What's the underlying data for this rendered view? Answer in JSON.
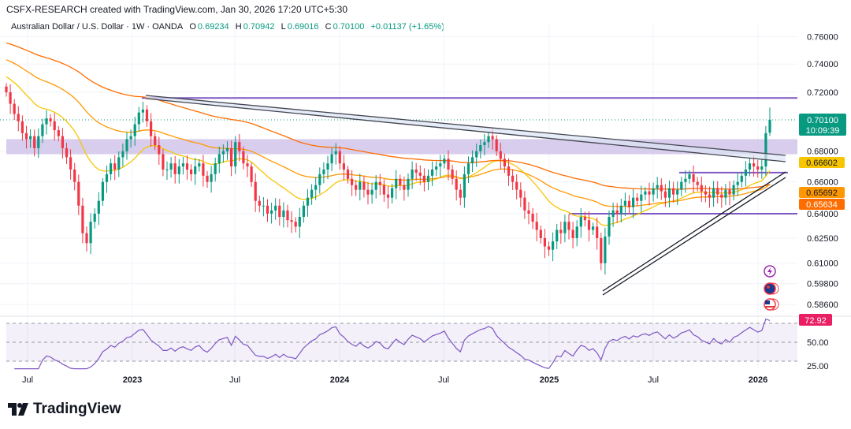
{
  "header": {
    "credit": "CSFX-RESEARCH created with TradingView.com, Jan 30, 2026 17:20 UTC+5:30",
    "symbol": "Australian Dollar / U.S. Dollar · 1W · OANDA",
    "open_label": "O",
    "open": "0.69234",
    "high_label": "H",
    "high": "0.70942",
    "low_label": "L",
    "low": "0.69016",
    "close_label": "C",
    "close": "0.70100",
    "change": "+0.01137 (+1.65%)"
  },
  "price_badge": {
    "value": "0.70100",
    "countdown": "10:09:39",
    "color": "#089981"
  },
  "ma_badges": [
    {
      "value": "0.66602",
      "color": "#f7c600"
    },
    {
      "value": "0.65692",
      "color": "#ff9800"
    },
    {
      "value": "0.65634",
      "color": "#ff6d00"
    }
  ],
  "logo": "TradingView",
  "icons": [
    "lightning-event-icon",
    "australia-flag-icon",
    "us-flag-icon"
  ],
  "chart_data": [
    {
      "type": "candlestick",
      "scale": "log",
      "grid": true,
      "ylim": [
        0.575,
        0.775
      ],
      "y_ticks": [
        "0.76000",
        "0.74000",
        "0.72000",
        "0.68000",
        "0.66000",
        "0.64000",
        "0.62500",
        "0.61000",
        "0.59800",
        "0.58600"
      ],
      "y_tick_values": [
        0.76,
        0.74,
        0.72,
        0.68,
        0.66,
        0.64,
        0.625,
        0.61,
        0.598,
        0.586
      ],
      "x_ticks": [
        "Jul",
        "2023",
        "Jul",
        "2024",
        "Jul",
        "2025",
        "Jul",
        "2026"
      ],
      "interval": "1W",
      "close": [
        0.72,
        0.712,
        0.705,
        0.7,
        0.692,
        0.688,
        0.69,
        0.682,
        0.69,
        0.698,
        0.702,
        0.7,
        0.694,
        0.69,
        0.682,
        0.676,
        0.668,
        0.66,
        0.645,
        0.628,
        0.622,
        0.635,
        0.64,
        0.648,
        0.66,
        0.665,
        0.672,
        0.668,
        0.676,
        0.68,
        0.688,
        0.69,
        0.698,
        0.706,
        0.708,
        0.7,
        0.69,
        0.684,
        0.678,
        0.668,
        0.668,
        0.672,
        0.665,
        0.67,
        0.672,
        0.668,
        0.665,
        0.67,
        0.672,
        0.664,
        0.66,
        0.665,
        0.672,
        0.678,
        0.68,
        0.682,
        0.67,
        0.686,
        0.68,
        0.672,
        0.67,
        0.66,
        0.648,
        0.645,
        0.645,
        0.64,
        0.642,
        0.645,
        0.638,
        0.642,
        0.636,
        0.635,
        0.632,
        0.638,
        0.645,
        0.65,
        0.655,
        0.658,
        0.665,
        0.668,
        0.672,
        0.678,
        0.68,
        0.672,
        0.668,
        0.662,
        0.658,
        0.655,
        0.66,
        0.655,
        0.652,
        0.655,
        0.66,
        0.658,
        0.652,
        0.65,
        0.656,
        0.662,
        0.658,
        0.655,
        0.662,
        0.668,
        0.666,
        0.664,
        0.66,
        0.664,
        0.668,
        0.67,
        0.672,
        0.675,
        0.668,
        0.662,
        0.655,
        0.65,
        0.665,
        0.672,
        0.676,
        0.68,
        0.684,
        0.686,
        0.69,
        0.688,
        0.68,
        0.675,
        0.67,
        0.664,
        0.66,
        0.655,
        0.65,
        0.642,
        0.64,
        0.635,
        0.63,
        0.625,
        0.62,
        0.618,
        0.623,
        0.63,
        0.628,
        0.635,
        0.63,
        0.625,
        0.632,
        0.638,
        0.636,
        0.63,
        0.632,
        0.625,
        0.61,
        0.626,
        0.638,
        0.642,
        0.64,
        0.645,
        0.648,
        0.644,
        0.65,
        0.648,
        0.652,
        0.654,
        0.652,
        0.656,
        0.658,
        0.654,
        0.65,
        0.656,
        0.652,
        0.655,
        0.66,
        0.662,
        0.665,
        0.66,
        0.658,
        0.654,
        0.652,
        0.65,
        0.656,
        0.652,
        0.65,
        0.655,
        0.652,
        0.658,
        0.66,
        0.664,
        0.668,
        0.672,
        0.67,
        0.668,
        0.67,
        0.692,
        0.701
      ],
      "last_candle": {
        "open": 0.69234,
        "high": 0.70942,
        "low": 0.69016,
        "close": 0.701
      },
      "moving_averages": [
        {
          "color": "#f7c600",
          "last": 0.66602
        },
        {
          "color": "#ff9800",
          "last": 0.65692
        },
        {
          "color": "#ff6d00",
          "last": 0.65634
        }
      ],
      "levels": {
        "resistance": 0.716,
        "zone": [
          0.678,
          0.688
        ],
        "range_high": 0.666,
        "range_low": 0.64
      },
      "colors": {
        "up": "#089981",
        "down": "#f23645",
        "levels": "#7e57c2",
        "zone": "#d1c4e9"
      }
    },
    {
      "type": "line",
      "indicator": "RSI",
      "ylim": [
        25,
        75
      ],
      "y_ticks": [
        "50.00",
        "25.00"
      ],
      "last_label": "72.92",
      "band": [
        30,
        70
      ],
      "color": "#7e57c2",
      "label_color": "#e91e63"
    }
  ]
}
